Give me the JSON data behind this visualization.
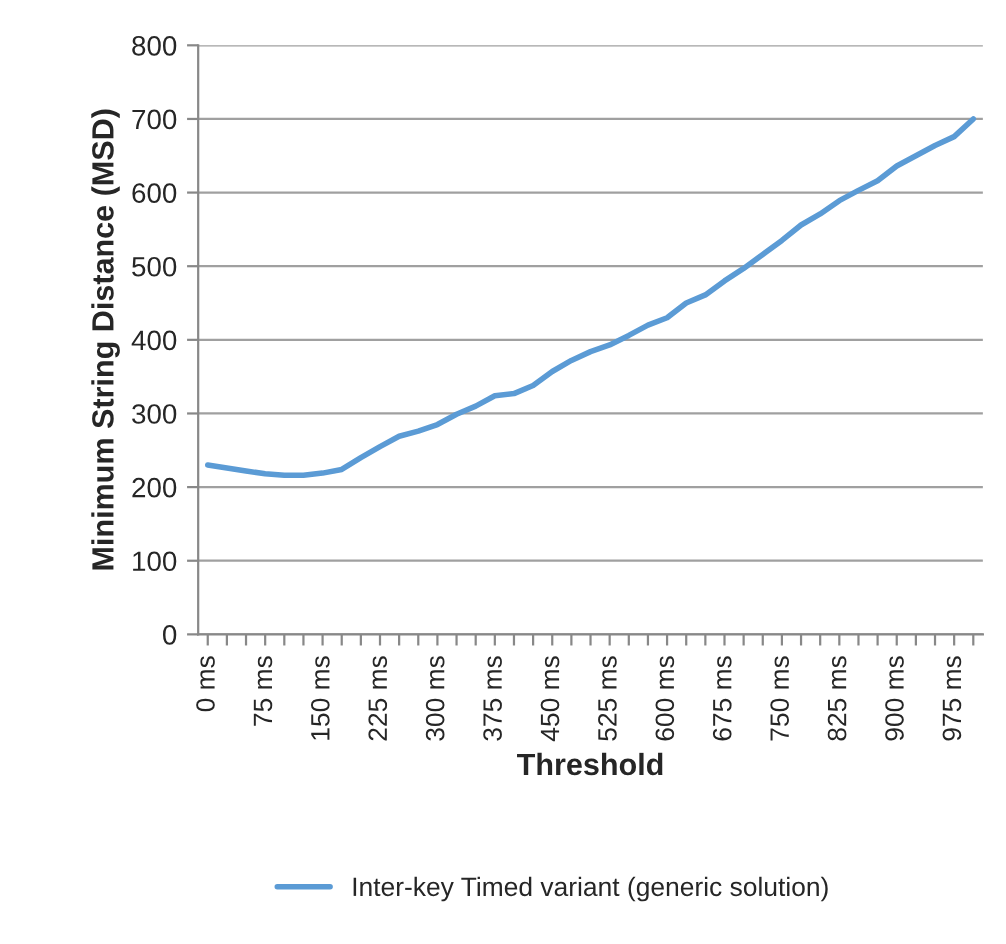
{
  "chart_data": {
    "type": "line",
    "xlabel": "Threshold",
    "ylabel": "Minimum String Distance (MSD)",
    "categories": [
      "0 ms",
      null,
      null,
      "75 ms",
      null,
      null,
      "150 ms",
      null,
      null,
      "225 ms",
      null,
      null,
      "300 ms",
      null,
      null,
      "375 ms",
      null,
      null,
      "450 ms",
      null,
      null,
      "525 ms",
      null,
      null,
      "600 ms",
      null,
      null,
      "675 ms",
      null,
      null,
      "750 ms",
      null,
      null,
      "825 ms",
      null,
      null,
      "900 ms",
      null,
      null,
      "975 ms",
      null
    ],
    "series": [
      {
        "name": "Inter-key Timed variant (generic solution)",
        "color": "#5b9bd5",
        "values": [
          230,
          226,
          222,
          218,
          216,
          216,
          219,
          224,
          240,
          255,
          269,
          276,
          285,
          299,
          310,
          324,
          327,
          338,
          357,
          372,
          384,
          393,
          406,
          420,
          430,
          450,
          461,
          480,
          497,
          516,
          535,
          556,
          571,
          589,
          603,
          616,
          636,
          650,
          664,
          676,
          700
        ]
      }
    ],
    "ylim": [
      0,
      800
    ],
    "yticks": [
      0,
      100,
      200,
      300,
      400,
      500,
      600,
      700,
      800
    ],
    "grid": "y",
    "legend": "bottom",
    "marker": "none",
    "line_style": "solid"
  }
}
